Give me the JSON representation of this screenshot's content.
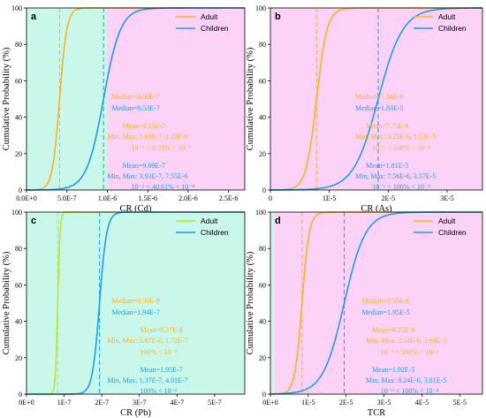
{
  "chart_data": [
    {
      "type": "line",
      "panel_label": "a",
      "xlabel": "CR (Cd)",
      "ylabel": "Cumulative Probability (%)",
      "xlim": [
        0,
        2.7e-06
      ],
      "ylim": [
        0,
        100
      ],
      "xticks": [
        0,
        5e-07,
        1e-06,
        1.5e-06,
        2e-06,
        2.5e-06
      ],
      "xtick_labels": [
        "0.0E+0",
        "5.0E-7",
        "1.0E-6",
        "1.5E-6",
        "2.0E-6",
        "2.5E-6"
      ],
      "yticks": [
        0,
        20,
        40,
        60,
        80,
        100
      ],
      "ytick_labels": [
        "0",
        "20",
        "40",
        "60",
        "80",
        "100"
      ],
      "background_bands": [
        {
          "from": 0,
          "to": 1e-06,
          "color": "#c9f7ea"
        },
        {
          "from": 1e-06,
          "to": 2.7e-06,
          "color": "#fcd2f7"
        }
      ],
      "median_lines": [
        4.09e-07,
        9.53e-07
      ],
      "series": [
        {
          "name": "Adult",
          "color": "#ffb121",
          "median": 4.09e-07,
          "spread": 4.5e-08,
          "x": [
            1.69e-07,
            2.5e-07,
            3e-07,
            3.5e-07,
            3.8e-07,
            4.09e-07,
            4.4e-07,
            4.8e-07,
            5.3e-07,
            6e-07,
            7e-07,
            1e-06,
            2.7e-06
          ],
          "y": [
            0,
            0.6,
            4,
            19,
            35,
            50,
            66,
            83,
            94,
            99,
            100,
            100,
            100
          ]
        },
        {
          "name": "Children",
          "color": "#1f9bf0",
          "median": 9.53e-07,
          "spread": 1.05e-07,
          "x": [
            3.93e-07,
            5e-07,
            6e-07,
            7e-07,
            8e-07,
            9e-07,
            9.53e-07,
            1.05e-06,
            1.15e-06,
            1.3e-06,
            1.5e-06,
            1.8e-06,
            2.7e-06
          ],
          "y": [
            0,
            0.2,
            1.3,
            7,
            22,
            39,
            50,
            69,
            87,
            97,
            99.7,
            100,
            100
          ]
        }
      ],
      "annotations": [
        {
          "text": "Median=4.09E-7",
          "color": "#ffb121"
        },
        {
          "text": "Median=9.53E-7",
          "color": "#1f9bf0"
        },
        {
          "text": "Mean=4.15E-7",
          "color": "#ffb121"
        },
        {
          "text": "Min, Max: 1.69E-7, 1.23E-6",
          "color": "#ffb121"
        },
        {
          "text": "10⁻⁶ < 0.20% < 10⁻⁴",
          "color": "#ffb121"
        },
        {
          "text": "Mean=9.69E-7",
          "color": "#1f9bf0"
        },
        {
          "text": "Min, Max: 3.93E-7, 7.55E-6",
          "color": "#1f9bf0"
        },
        {
          "text": "10⁻⁶ < 40.61% < 10⁻⁴",
          "color": "#1f9bf0"
        }
      ],
      "legend": {
        "position": "top-right",
        "entries": [
          "Adult",
          "Children"
        ]
      },
      "grid": false
    },
    {
      "type": "line",
      "panel_label": "b",
      "xlabel": "CR (As)",
      "ylabel": "Cumulative Probability (%)",
      "xlim": [
        0,
        3.6e-05
      ],
      "ylim": [
        0,
        100
      ],
      "xticks": [
        0,
        1e-05,
        2e-05,
        3e-05
      ],
      "xtick_labels": [
        "0",
        "1E-5",
        "2E-5",
        "3E-5"
      ],
      "yticks": [
        0,
        20,
        40,
        60,
        80,
        100
      ],
      "ytick_labels": [
        "0",
        "20",
        "40",
        "60",
        "80",
        "100"
      ],
      "background_bands": [
        {
          "from": 0,
          "to": 3.6e-05,
          "color": "#fcd2f7"
        }
      ],
      "median_lines": [
        7.84e-06,
        1.83e-05
      ],
      "series": [
        {
          "name": "Adult",
          "color": "#ffb121",
          "median": 7.84e-06,
          "spread": 9e-07,
          "x": [
            3.25e-06,
            4.5e-06,
            5.5e-06,
            6.5e-06,
            7.2e-06,
            7.84e-06,
            8.5e-06,
            9.2e-06,
            1e-05,
            1.1e-05,
            1.25e-05,
            1.53e-05,
            3.6e-05
          ],
          "y": [
            0,
            0.5,
            3,
            16,
            33,
            50,
            68,
            84,
            94,
            99,
            100,
            100,
            100
          ]
        },
        {
          "name": "Children",
          "color": "#1f9bf0",
          "median": 1.83e-05,
          "spread": 2.1e-06,
          "x": [
            7.56e-06,
            1e-05,
            1.2e-05,
            1.4e-05,
            1.6e-05,
            1.75e-05,
            1.83e-05,
            2e-05,
            2.2e-05,
            2.4e-05,
            2.7e-05,
            3e-05,
            3.6e-05
          ],
          "y": [
            0,
            0.2,
            1.4,
            7,
            22,
            40,
            50,
            69,
            87,
            96,
            99.7,
            100,
            100
          ]
        }
      ],
      "annotations": [
        {
          "text": "Median=7.84E-6",
          "color": "#ffb121"
        },
        {
          "text": "Median=1.83E-5",
          "color": "#1f9bf0"
        },
        {
          "text": "Mean=7.75E-6",
          "color": "#ffb121"
        },
        {
          "text": "Min, Max: 3.25E-6, 1.53E-5",
          "color": "#ffb121"
        },
        {
          "text": "10⁻⁶ < 100% < 10⁻⁴",
          "color": "#ffb121"
        },
        {
          "text": "Mean=1.81E-5",
          "color": "#1f9bf0"
        },
        {
          "text": "Min, Max: 7.56E-6, 3.57E-5",
          "color": "#1f9bf0"
        },
        {
          "text": "10⁻⁶ < 100% < 10⁻⁴",
          "color": "#1f9bf0"
        }
      ],
      "legend": {
        "position": "top-right",
        "entries": [
          "Adult",
          "Children"
        ]
      },
      "grid": false
    },
    {
      "type": "line",
      "panel_label": "c",
      "xlabel": "CR (Pb)",
      "ylabel": "Cumulative Probability (%)",
      "xlim": [
        0,
        5.8e-07
      ],
      "ylim": [
        0,
        100
      ],
      "xticks": [
        0,
        1e-07,
        2e-07,
        3e-07,
        4e-07,
        5e-07
      ],
      "xtick_labels": [
        "0E+0",
        "1E-7",
        "2E-7",
        "3E-7",
        "4E-7",
        "5E-7"
      ],
      "yticks": [
        0,
        20,
        40,
        60,
        80,
        100
      ],
      "ytick_labels": [
        "0",
        "20",
        "40",
        "60",
        "80",
        "100"
      ],
      "background_bands": [
        {
          "from": 0,
          "to": 5.8e-07,
          "color": "#c9f7ea"
        }
      ],
      "median_lines": [
        8.3e-08,
        1.94e-07
      ],
      "series": [
        {
          "name": "Adult",
          "color": "#b8e82c",
          "median": 8.3e-08,
          "spread": 3e-09,
          "x": [
            5.87e-08,
            7e-08,
            7.5e-08,
            7.9e-08,
            8.1e-08,
            8.3e-08,
            8.5e-08,
            8.8e-08,
            9.2e-08,
            1e-07,
            1.2e-07,
            1.72e-07
          ],
          "y": [
            0,
            0.8,
            5,
            18,
            34,
            50,
            66,
            84,
            95,
            99.5,
            100,
            100
          ]
        },
        {
          "name": "Children",
          "color": "#1f9bf0",
          "median": 1.94e-07,
          "spread": 9.5e-09,
          "x": [
            1.37e-07,
            1.6e-07,
            1.7e-07,
            1.8e-07,
            1.87e-07,
            1.94e-07,
            2e-07,
            2.07e-07,
            2.15e-07,
            2.3e-07,
            2.6e-07,
            4.01e-07
          ],
          "y": [
            0,
            0.5,
            4,
            16,
            32,
            50,
            66,
            83,
            95,
            99.5,
            100,
            100
          ]
        }
      ],
      "annotations": [
        {
          "text": "Median=8.30E-8",
          "color": "#ffb121"
        },
        {
          "text": "Median=1.94E-7",
          "color": "#1f9bf0"
        },
        {
          "text": "Mean=8.37E-8",
          "color": "#ffb121"
        },
        {
          "text": "Min, Max: 5.87E-8, 1.72E-7",
          "color": "#ffb121"
        },
        {
          "text": "100% < 10⁻⁶",
          "color": "#ffb121"
        },
        {
          "text": "Mean=1.95E-7",
          "color": "#1f9bf0"
        },
        {
          "text": "Min, Max: 1.37E-7, 4.01E-7",
          "color": "#1f9bf0"
        },
        {
          "text": "100% < 10⁻⁶",
          "color": "#1f9bf0"
        }
      ],
      "legend": {
        "position": "top-right",
        "entries": [
          "Adult",
          "Children"
        ]
      },
      "grid": false
    },
    {
      "type": "line",
      "panel_label": "d",
      "xlabel": "TCR",
      "ylabel": "Cumulative Probability (%)",
      "xlim": [
        0,
        5.6e-05
      ],
      "ylim": [
        0,
        100
      ],
      "xticks": [
        0,
        1e-05,
        2e-05,
        3e-05,
        4e-05,
        5e-05
      ],
      "xtick_labels": [
        "0E+0",
        "1E-5",
        "2E-5",
        "3E-5",
        "4E-5",
        "5E-5"
      ],
      "yticks": [
        0,
        20,
        40,
        60,
        80,
        100
      ],
      "ytick_labels": [
        "0",
        "20",
        "40",
        "60",
        "80",
        "100"
      ],
      "background_bands": [
        {
          "from": 0,
          "to": 1e-06,
          "color": "#c9f7ea"
        },
        {
          "from": 1e-06,
          "to": 5.6e-05,
          "color": "#fcd2f7"
        }
      ],
      "median_lines": [
        8.35e-06,
        1.95e-05
      ],
      "series": [
        {
          "name": "Adult",
          "color": "#ffb121",
          "median": 8.35e-06,
          "spread": 9.5e-07,
          "x": [
            3.54e-06,
            5e-06,
            6e-06,
            7e-06,
            7.7e-06,
            8.35e-06,
            9e-06,
            9.8e-06,
            1.07e-05,
            1.2e-05,
            1.4e-05,
            1.64e-05,
            5.6e-05
          ],
          "y": [
            0,
            0.6,
            4,
            16,
            32,
            50,
            67,
            83,
            94,
            99,
            100,
            100,
            100
          ]
        },
        {
          "name": "Children",
          "color": "#1f9bf0",
          "median": 1.95e-05,
          "spread": 2.8e-06,
          "x": [
            8.24e-06,
            1e-05,
            1.2e-05,
            1.5e-05,
            1.7e-05,
            1.95e-05,
            2.2e-05,
            2.5e-05,
            2.8e-05,
            3.1e-05,
            3.5e-05,
            3.81e-05,
            5.6e-05
          ],
          "y": [
            0,
            0.1,
            0.6,
            7,
            20,
            50,
            81,
            95,
            99,
            99.8,
            100,
            100,
            100
          ]
        }
      ],
      "annotations": [
        {
          "text": "Median=8.35E-6",
          "color": "#ffb121"
        },
        {
          "text": "Median=1.95E-5",
          "color": "#1f9bf0"
        },
        {
          "text": "Mean=8.25E-6",
          "color": "#ffb121"
        },
        {
          "text": "Min, Max: 3.54E-6, 1.64E-5",
          "color": "#ffb121"
        },
        {
          "text": "10⁻⁶ < 100% < 10⁻⁴",
          "color": "#ffb121"
        },
        {
          "text": "Mean=1.92E-5",
          "color": "#1f9bf0"
        },
        {
          "text": "Min, Max: 8.24E-6, 3.81E-5",
          "color": "#1f9bf0"
        },
        {
          "text": "10⁻⁶ < 100% < 10⁻⁴",
          "color": "#1f9bf0"
        }
      ],
      "legend": {
        "position": "top-right",
        "entries": [
          "Adult",
          "Children"
        ]
      },
      "grid": false
    }
  ]
}
